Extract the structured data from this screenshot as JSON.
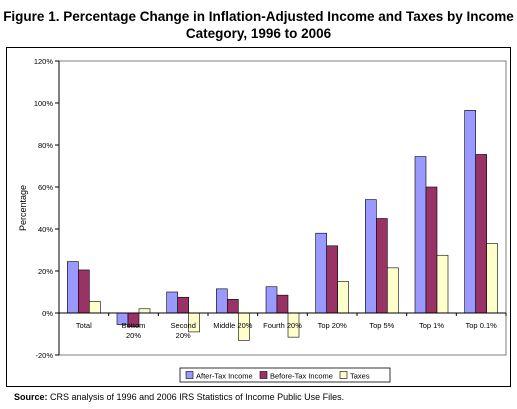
{
  "figure": {
    "title_line1": "Figure 1. Percentage Change in Inflation-Adjusted Income and Taxes by Income",
    "title_line2": "Category, 1996 to 2006",
    "source_label": "Source:",
    "source_text": "CRS analysis of 1996 and 2006 IRS Statistics of Income Public Use Files."
  },
  "chart_data": {
    "type": "bar",
    "ylabel": "Percentage",
    "ylim": [
      -20,
      120
    ],
    "yticks": [
      -20,
      0,
      20,
      40,
      60,
      80,
      100,
      120
    ],
    "ytick_labels": [
      "-20%",
      "0%",
      "20%",
      "40%",
      "60%",
      "80%",
      "100%",
      "120%"
    ],
    "grid": false,
    "legend_position": "bottom",
    "categories": [
      "Total",
      "Bottom 20%",
      "Second 20%",
      "Middle 20%",
      "Fourth 20%",
      "Top 20%",
      "Top 5%",
      "Top 1%",
      "Top 0.1%"
    ],
    "series": [
      {
        "name": "After-Tax Income",
        "color": "#9999FF",
        "values": [
          24.5,
          -5.5,
          10,
          11.5,
          12.5,
          38,
          54,
          74.5,
          96.5
        ]
      },
      {
        "name": "Before-Tax Income",
        "color": "#993366",
        "values": [
          20.5,
          -6.5,
          7.5,
          6.5,
          8.5,
          32,
          45,
          60,
          75.5
        ]
      },
      {
        "name": "Taxes",
        "color": "#FFFFCC",
        "values": [
          5.5,
          2,
          -9,
          -13,
          -11.5,
          15,
          21.5,
          27.5,
          33
        ]
      }
    ]
  }
}
